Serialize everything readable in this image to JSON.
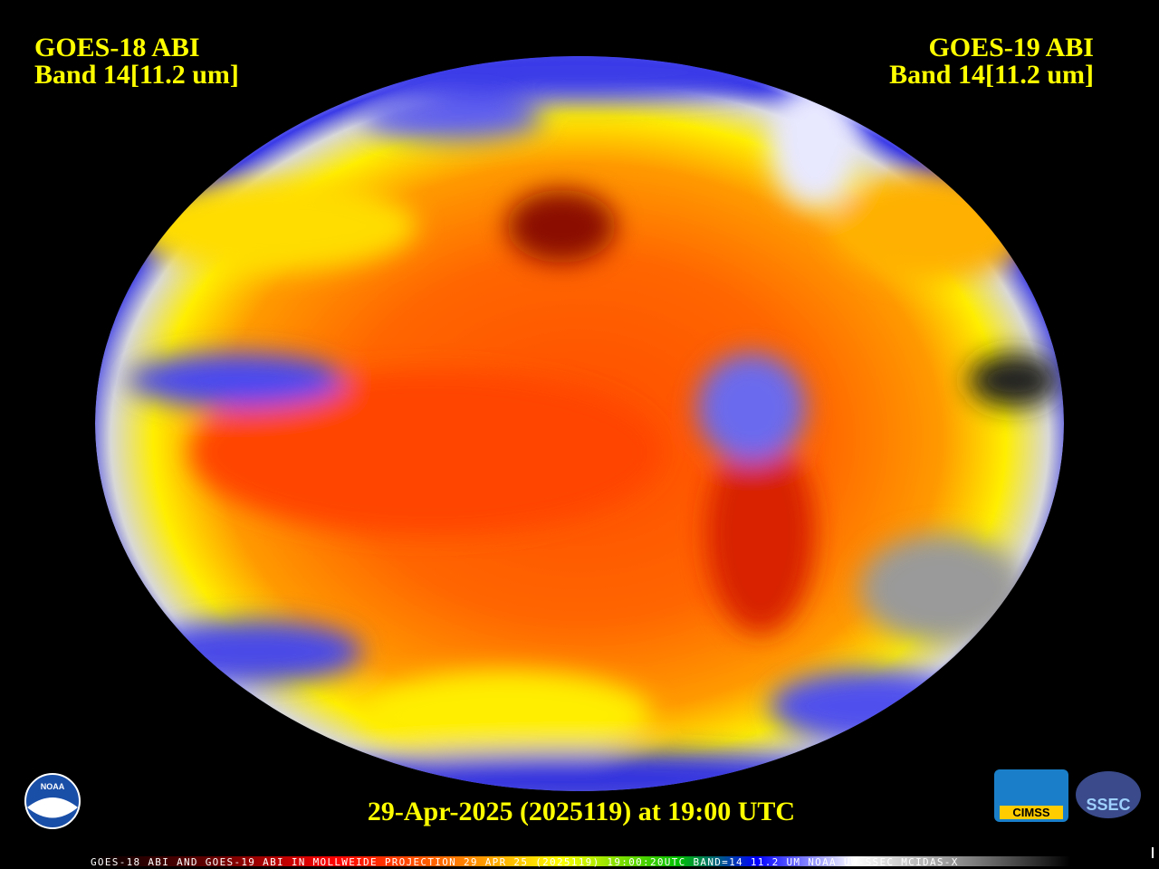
{
  "header": {
    "left": [
      "GOES-18 ABI",
      "Band 14[11.2 um]"
    ],
    "right": [
      "GOES-19 ABI",
      "Band 14[11.2 um]"
    ]
  },
  "caption": "29-Apr-2025 (2025119) at 19:00 UTC",
  "footer": "GOES-18 ABI AND GOES-19 ABI IN MOLLWEIDE PROJECTION 29 APR 25 (2025119) 19:00:20UTC BAND=14 11.2 UM NOAA UW-SSEC MCIDAS-X",
  "logos": [
    "NOAA",
    "CIMSS",
    "SSEC"
  ]
}
